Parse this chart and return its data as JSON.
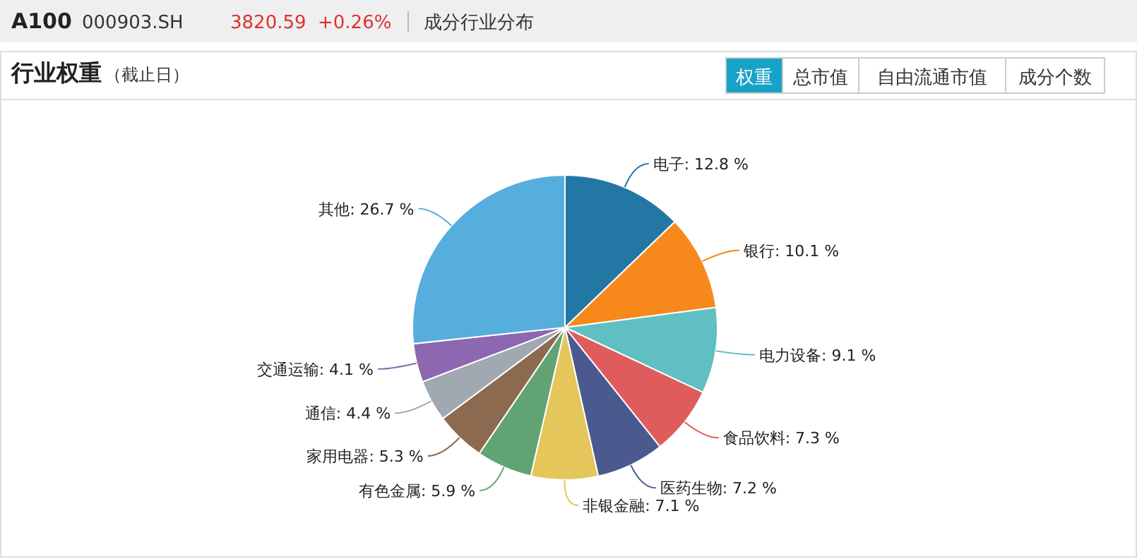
{
  "chart_data": {
    "type": "pie",
    "title": "行业权重",
    "subtitle": "（截止日）",
    "annotations": [
      "A100",
      "000903.SH",
      "3820.59",
      "+0.26%",
      "成分行业分布",
      "权重",
      "总市值",
      "自由流通市值",
      "成分个数"
    ],
    "categories": [
      "电子",
      "银行",
      "电力设备",
      "食品饮料",
      "医药生物",
      "非银金融",
      "有色金属",
      "家用电器",
      "通信",
      "交通运输",
      "其他"
    ],
    "values": [
      12.8,
      10.1,
      9.1,
      7.3,
      7.2,
      7.1,
      5.9,
      5.3,
      4.4,
      4.1,
      26.7
    ],
    "value_labels": [
      "12.8 %",
      "10.1 %",
      "9.1 %",
      "7.3 %",
      "7.2 %",
      "7.1 %",
      "5.9 %",
      "5.3 %",
      "4.4 %",
      "4.1 %",
      "26.7 %"
    ],
    "colors": [
      "#2377a4",
      "#f7891c",
      "#5fbfc2",
      "#e05c5c",
      "#4a5a8e",
      "#e4c65a",
      "#62a374",
      "#8c6a4f",
      "#a0a8b2",
      "#8b68b0",
      "#56aedc"
    ]
  }
}
